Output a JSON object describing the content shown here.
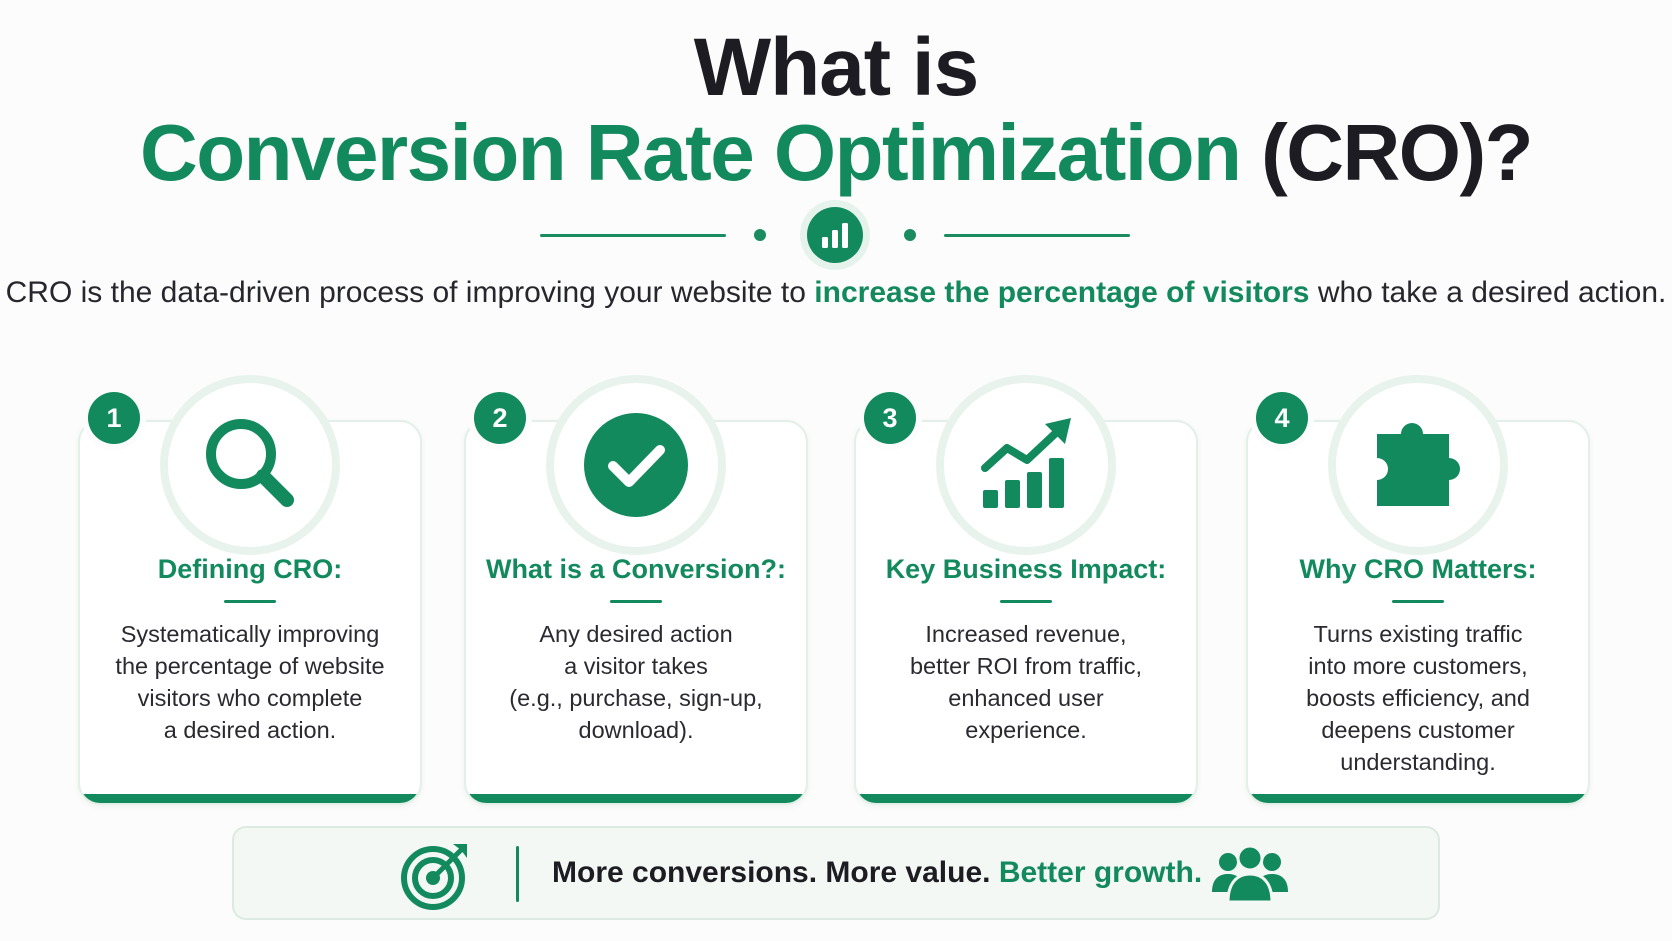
{
  "title": {
    "line1": "What is",
    "highlight": "Conversion Rate Optimization",
    "suffix": " (CRO)?"
  },
  "intro": {
    "part1": "CRO is the data-driven process of improving your website to ",
    "highlight": "increase the percentage of visitors",
    "part2": " who take a desired action."
  },
  "cards": [
    {
      "number": "1",
      "icon": "magnifier-icon",
      "heading": "Defining CRO:",
      "lines": [
        "Systematically improving",
        "the percentage of website",
        "visitors who complete",
        "a desired action."
      ]
    },
    {
      "number": "2",
      "icon": "checkmark-icon",
      "heading": "What is a Conversion?:",
      "lines": [
        "Any desired action",
        "a visitor takes",
        "(e.g., purchase, sign-up,",
        "download)."
      ]
    },
    {
      "number": "3",
      "icon": "growth-chart-icon",
      "heading": "Key Business Impact:",
      "lines": [
        "Increased revenue,",
        "better ROI from traffic,",
        "enhanced user",
        "experience."
      ]
    },
    {
      "number": "4",
      "icon": "puzzle-piece-icon",
      "heading": "Why CRO Matters:",
      "lines": [
        "Turns existing traffic",
        "into more customers,",
        "boosts efficiency, and",
        "deepens customer",
        "understanding."
      ]
    }
  ],
  "footer": {
    "text_dark": "More conversions. More value. ",
    "text_green": "Better growth.",
    "left_icon": "target-icon",
    "right_icon": "people-group-icon"
  },
  "colors": {
    "accent": "#138a5e",
    "accent_light": "#e8f3ed",
    "text_dark": "#1c1c22"
  }
}
